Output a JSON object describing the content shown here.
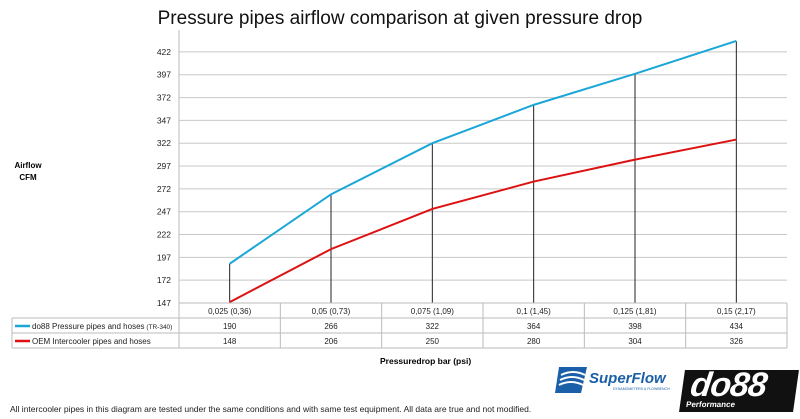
{
  "chart_data": {
    "type": "line",
    "title": "Pressure pipes airflow comparison at given pressure drop",
    "ylabel": [
      "Airflow",
      "CFM"
    ],
    "xlabel": "Pressuredrop bar (psi)",
    "categories": [
      "0,025 (0,36)",
      "0,05 (0,73)",
      "0,075 (1,09)",
      "0,1 (1,45)",
      "0,125 (1,81)",
      "0,15 (2,17)"
    ],
    "yticks": [
      147,
      172,
      197,
      222,
      247,
      272,
      297,
      322,
      347,
      372,
      397,
      422
    ],
    "ylim": [
      147,
      446
    ],
    "grid": true,
    "legend": "data-table below chart",
    "series": [
      {
        "name": "do88 Pressure pipes and hoses",
        "name_suffix": "(TR-340)",
        "color": "#1aa7d8",
        "values": [
          190,
          266,
          322,
          364,
          398,
          434
        ]
      },
      {
        "name": "OEM Intercooler pipes and hoses",
        "color": "#dd1111",
        "values": [
          148,
          206,
          250,
          280,
          304,
          326
        ]
      }
    ]
  },
  "footer": {
    "note": "All intercooler pipes in this diagram are tested under the same conditions and with same test equipment. All data are true and not modified.",
    "logo_superflow": "SuperFlow",
    "logo_superflow_sub": "DYNAMOMETERS & FLOWBENCHES",
    "logo_do88": "do88",
    "logo_do88_sub": "Performance"
  }
}
